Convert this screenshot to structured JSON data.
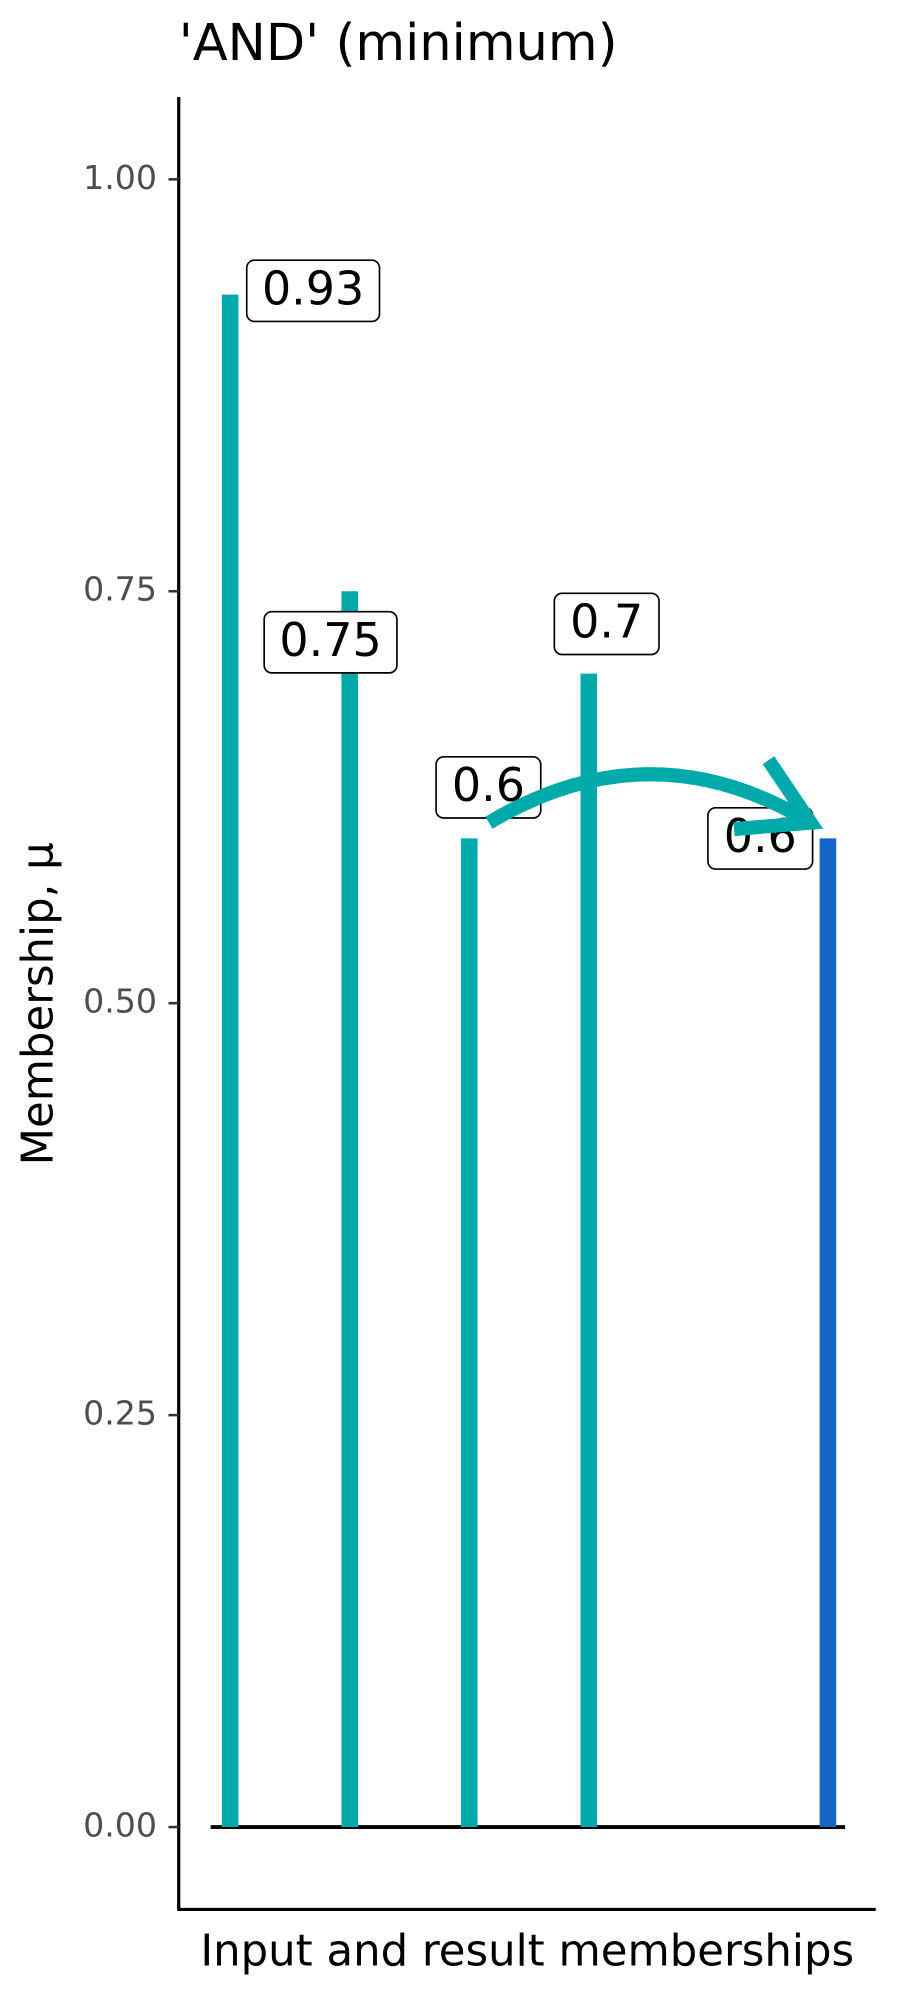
{
  "chart_data": {
    "type": "lollipop",
    "title": "'AND' (minimum)",
    "x_label": "Input and result memberships",
    "y_label": "Membership, μ",
    "x": [
      1,
      2,
      3,
      4,
      6
    ],
    "values": [
      0.93,
      0.75,
      0.6,
      0.7,
      0.6
    ],
    "colors": [
      "#00aaaa",
      "#00aaaa",
      "#00aaaa",
      "#00aaaa",
      "#1565c8"
    ],
    "xlim": [
      0.57,
      6.4
    ],
    "ylim": [
      -0.05,
      1.05
    ],
    "yticks": [
      {
        "value": 0,
        "label": "0.00"
      },
      {
        "value": 0.25,
        "label": "0.25"
      },
      {
        "value": 0.5,
        "label": "0.50"
      },
      {
        "value": 0.75,
        "label": "0.75"
      },
      {
        "value": 1,
        "label": "1.00"
      }
    ],
    "grid": false
  }
}
